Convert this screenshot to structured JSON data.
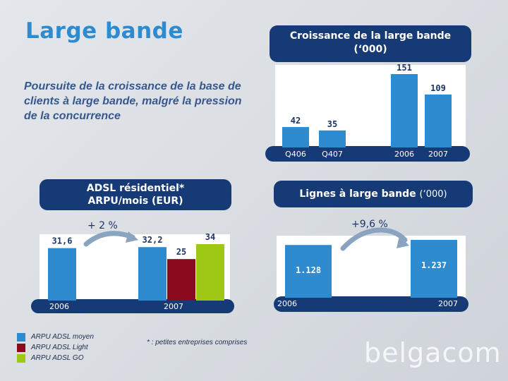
{
  "slide": {
    "title": "Large bande",
    "subtitle": "Poursuite de la croissance de la base de clients à large bande, malgré la pression de la concurrence"
  },
  "top_chart": {
    "header_line1": "Croissance de la large bande",
    "header_line2": "(‘000)",
    "bars": [
      {
        "label": "Q406",
        "value": 42,
        "value_text": "42"
      },
      {
        "label": "Q407",
        "value": 35,
        "value_text": "35"
      },
      {
        "label": "2006",
        "value": 151,
        "value_text": "151"
      },
      {
        "label": "2007",
        "value": 109,
        "value_text": "109"
      }
    ],
    "color": "#2e8bd0"
  },
  "adsl_chart": {
    "header_line1": "ADSL résidentiel*",
    "header_line2": "ARPU/mois (EUR)",
    "growth": "+ 2 %",
    "groups": [
      {
        "label": "2006",
        "bars": [
          {
            "series": "ARPU ADSL moyen",
            "value": 31.6,
            "value_text": "31,6"
          }
        ]
      },
      {
        "label": "2007",
        "bars": [
          {
            "series": "ARPU ADSL moyen",
            "value": 32.2,
            "value_text": "32,2"
          },
          {
            "series": "ARPU ADSL Light",
            "value": 25,
            "value_text": "25"
          },
          {
            "series": "ARPU ADSL GO",
            "value": 34,
            "value_text": "34"
          }
        ]
      }
    ],
    "legend": [
      {
        "name": "ARPU ADSL moyen",
        "color": "#2e8bd0"
      },
      {
        "name": "ARPU ADSL Light",
        "color": "#8b0a1e"
      },
      {
        "name": "ARPU ADSL GO",
        "color": "#9fc814"
      }
    ],
    "footnote": "* : petites entreprises comprises"
  },
  "lines_chart": {
    "header": "Lignes à large bande",
    "header_unit": "(‘000)",
    "growth": "+9,6 %",
    "bars": [
      {
        "label": "2006",
        "value": 1128,
        "value_text": "1.128"
      },
      {
        "label": "2007",
        "value": 1237,
        "value_text": "1.237"
      }
    ],
    "color": "#2e8bd0"
  },
  "logo": {
    "text": "belgacom"
  }
}
